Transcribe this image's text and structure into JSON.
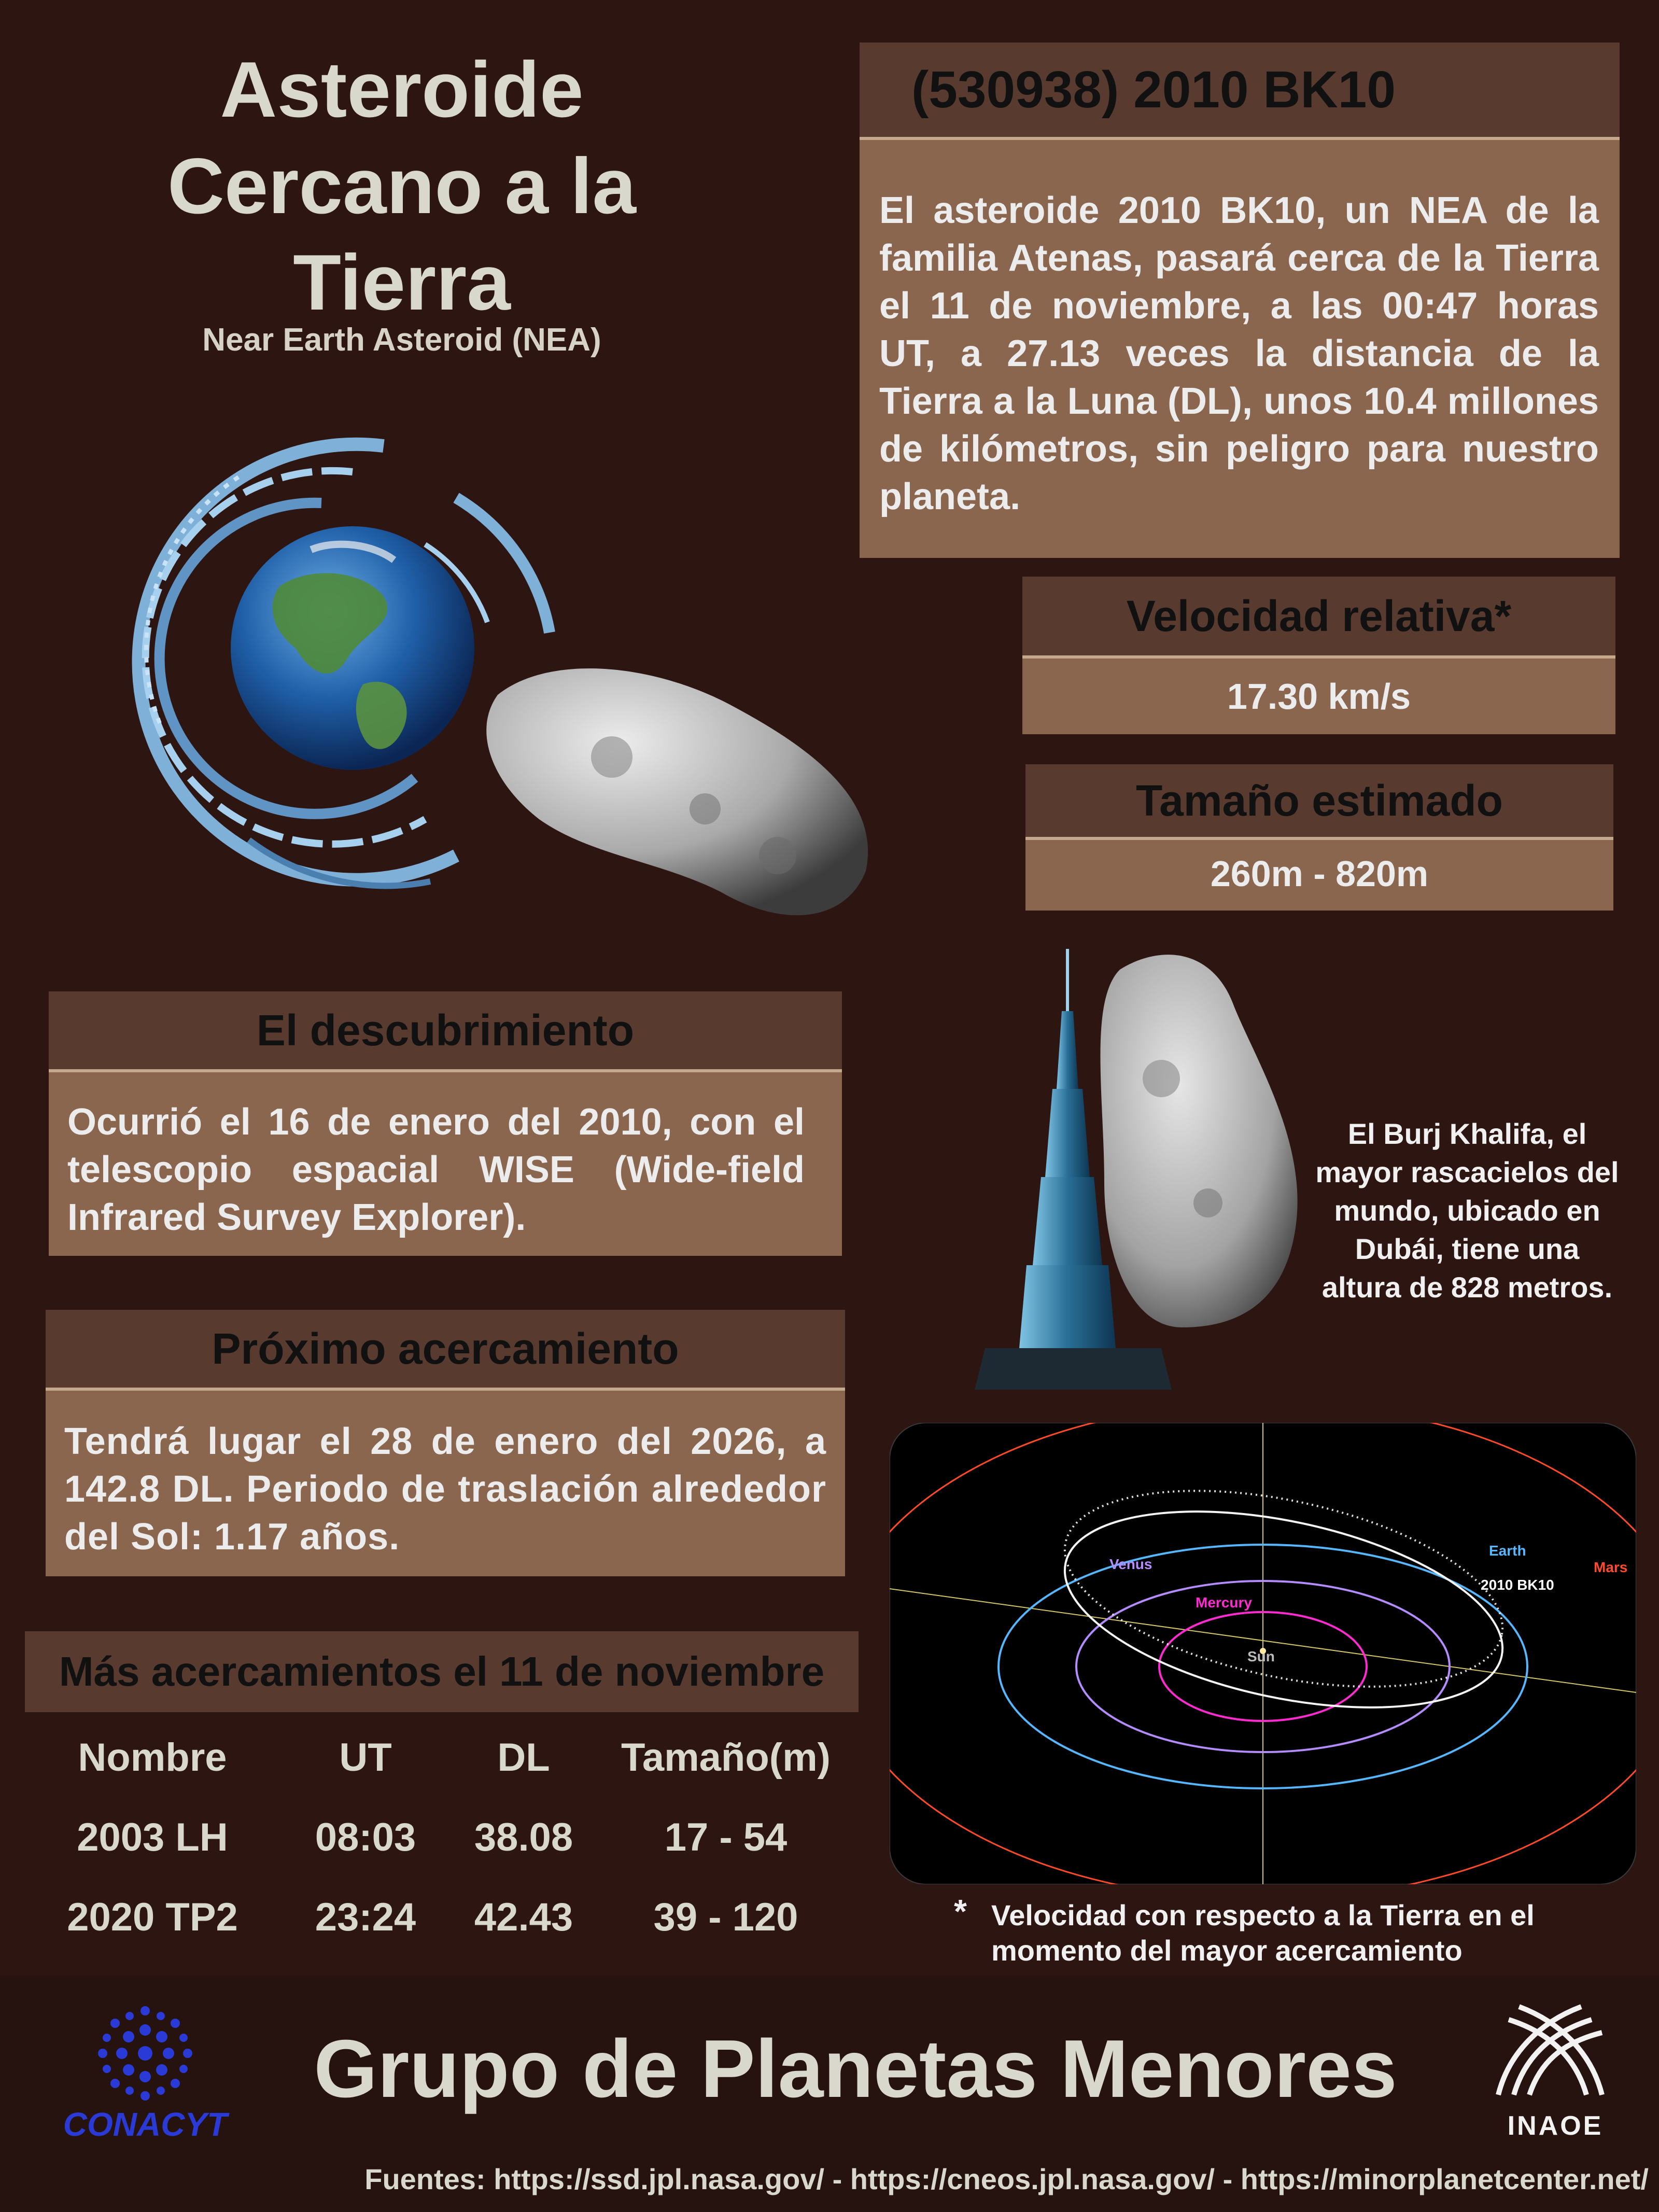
{
  "title": {
    "line1": "Asteroide",
    "line2": "Cercano a la",
    "line3": "Tierra",
    "subtitle": "Near Earth Asteroid (NEA)"
  },
  "designation": "(530938) 2010  BK10",
  "intro": "El  asteroide 2010 BK10, un NEA de la familia Atenas, pasará cerca de la Tierra el 11 de noviembre, a las 00:47 horas UT, a 27.13 veces la distancia de la Tierra a la Luna (DL), unos 10.4 millones de kilómetros, sin peligro para nuestro planeta.",
  "velocity": {
    "label": "Velocidad relativa*",
    "value": "17.30 km/s"
  },
  "size": {
    "label": "Tamaño estimado",
    "value": "260m - 820m"
  },
  "discovery": {
    "label": "El descubrimiento",
    "text": "Ocurrió el 16 de enero del 2010, con el telescopio espacial WISE (Wide-field Infrared Survey Explorer)."
  },
  "next": {
    "label": "Próximo acercamiento",
    "text": "Tendrá lugar el 28 de enero del 2026, a 142.8 DL. Periodo de traslación alrededor del Sol: 1.17 años."
  },
  "burj_note": "El Burj Khalifa, el mayor rascacielos del mundo, ubicado en Dubái, tiene una altura de 828 metros.",
  "orbit": {
    "earth": "Earth",
    "asteroid": "2010 BK10",
    "venus": "Venus",
    "mercury": "Mercury",
    "sun": "Sun",
    "mars": "Mars"
  },
  "more_approaches": {
    "label": "Más acercamientos el 11 de noviembre",
    "columns": [
      "Nombre",
      "UT",
      "DL",
      "Tamaño(m)"
    ],
    "rows": [
      [
        "2003 LH",
        "08:03",
        "38.08",
        "17 - 54"
      ],
      [
        "2020 TP2",
        "23:24",
        "42.43",
        "39 - 120"
      ]
    ]
  },
  "footnote": {
    "mark": "*",
    "text": "Velocidad con respecto a la Tierra en el momento del mayor acercamiento"
  },
  "footer": {
    "brand": "Grupo de Planetas Menores",
    "conacyt": "CONACYT",
    "inaoe": "INAOE",
    "sources": "Fuentes: https://ssd.jpl.nasa.gov/ - https://cneos.jpl.nasa.gov/ -  https://minorplanetcenter.net/"
  },
  "colors": {
    "background": "#2d1512",
    "header_box": "#593a2f",
    "body_box": "#8a664f",
    "title_text": "#d8d8cc",
    "earth_label": "#56b7ff",
    "venus_label": "#b58cff",
    "mercury_label": "#ff2bd0",
    "mars_label": "#ff4a2a"
  }
}
